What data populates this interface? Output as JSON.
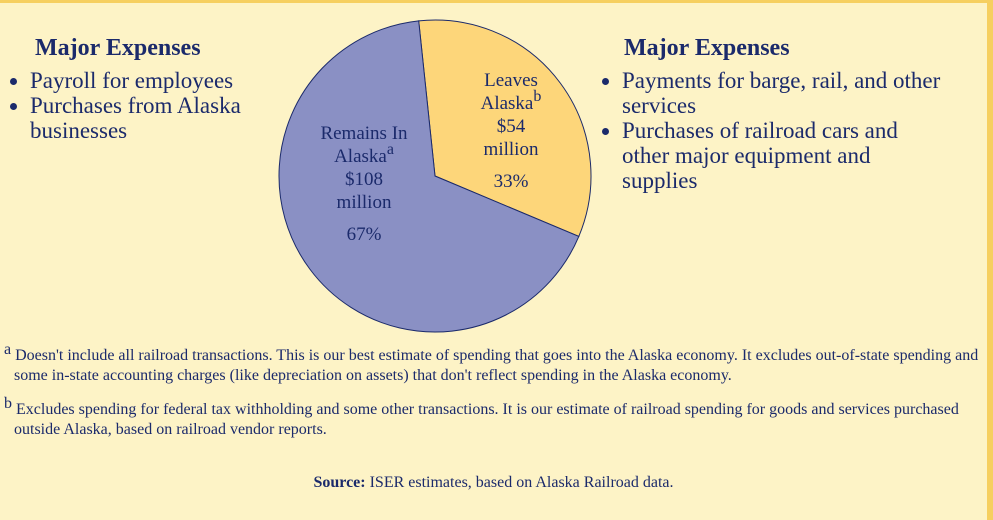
{
  "chart_data": {
    "type": "pie",
    "categories": [
      "Leaves Alaska",
      "Remains In Alaska"
    ],
    "values": [
      33,
      67
    ],
    "value_labels": [
      "33%",
      "67%"
    ],
    "amount_labels": [
      "$54 million",
      "$108 million"
    ],
    "notes": [
      "b",
      "a"
    ],
    "colors": [
      "#fdd67a",
      "#8a90c4"
    ]
  },
  "left_panel": {
    "title": "Major Expenses",
    "items": [
      "Payroll for employees",
      "Purchases from Alaska businesses"
    ]
  },
  "right_panel": {
    "title": "Major Expenses",
    "items": [
      "Payments for barge, rail, and other services",
      "Purchases of railroad cars and other major equipment and supplies"
    ]
  },
  "footnotes": [
    {
      "mark": "a",
      "text": "Doesn't include all railroad transactions. This is our best estimate of spending that goes into the Alaska economy. It excludes out-of-state spending and some in-state accounting charges (like depreciation on assets) that don't reflect spending in the Alaska economy."
    },
    {
      "mark": "b",
      "text": "Excludes spending for federal tax withholding  and some other transactions. It is our estimate of railroad spending for goods and services purchased outside Alaska, based on railroad vendor reports."
    }
  ],
  "source": {
    "label": "Source:",
    "text": "ISER estimates, based on Alaska Railroad data."
  }
}
